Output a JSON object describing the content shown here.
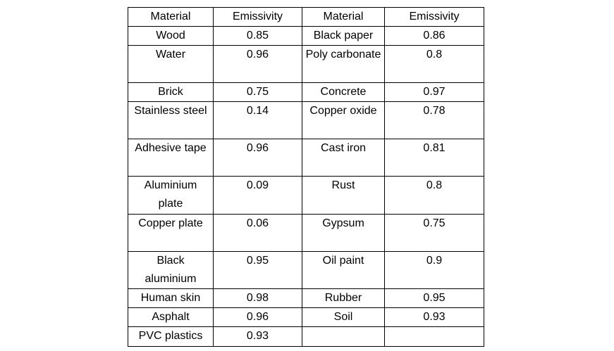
{
  "table": {
    "headers": [
      "Material",
      "Emissivity",
      "Material",
      "Emissivity"
    ],
    "rows": [
      {
        "material_left": "Wood",
        "emissivity_left": "0.85",
        "material_right": "Black paper",
        "emissivity_right": "0.86"
      },
      {
        "material_left": "Water",
        "emissivity_left": "0.96",
        "material_right": "Poly carbonate",
        "emissivity_right": "0.8"
      },
      {
        "material_left": "Brick",
        "emissivity_left": "0.75",
        "material_right": "Concrete",
        "emissivity_right": "0.97"
      },
      {
        "material_left": "Stainless steel",
        "emissivity_left": "0.14",
        "material_right": "Copper oxide",
        "emissivity_right": "0.78"
      },
      {
        "material_left": "Adhesive tape",
        "emissivity_left": "0.96",
        "material_right": "Cast iron",
        "emissivity_right": "0.81"
      },
      {
        "material_left": "Aluminium plate",
        "emissivity_left": "0.09",
        "material_right": "Rust",
        "emissivity_right": "0.8"
      },
      {
        "material_left": "Copper plate",
        "emissivity_left": "0.06",
        "material_right": "Gypsum",
        "emissivity_right": "0.75"
      },
      {
        "material_left": "Black aluminium",
        "emissivity_left": "0.95",
        "material_right": "Oil paint",
        "emissivity_right": "0.9"
      },
      {
        "material_left": "Human skin",
        "emissivity_left": "0.98",
        "material_right": "Rubber",
        "emissivity_right": "0.95"
      },
      {
        "material_left": "Asphalt",
        "emissivity_left": "0.96",
        "material_right": "Soil",
        "emissivity_right": "0.93"
      },
      {
        "material_left": "PVC plastics",
        "emissivity_left": "0.93",
        "material_right": "",
        "emissivity_right": ""
      }
    ]
  }
}
